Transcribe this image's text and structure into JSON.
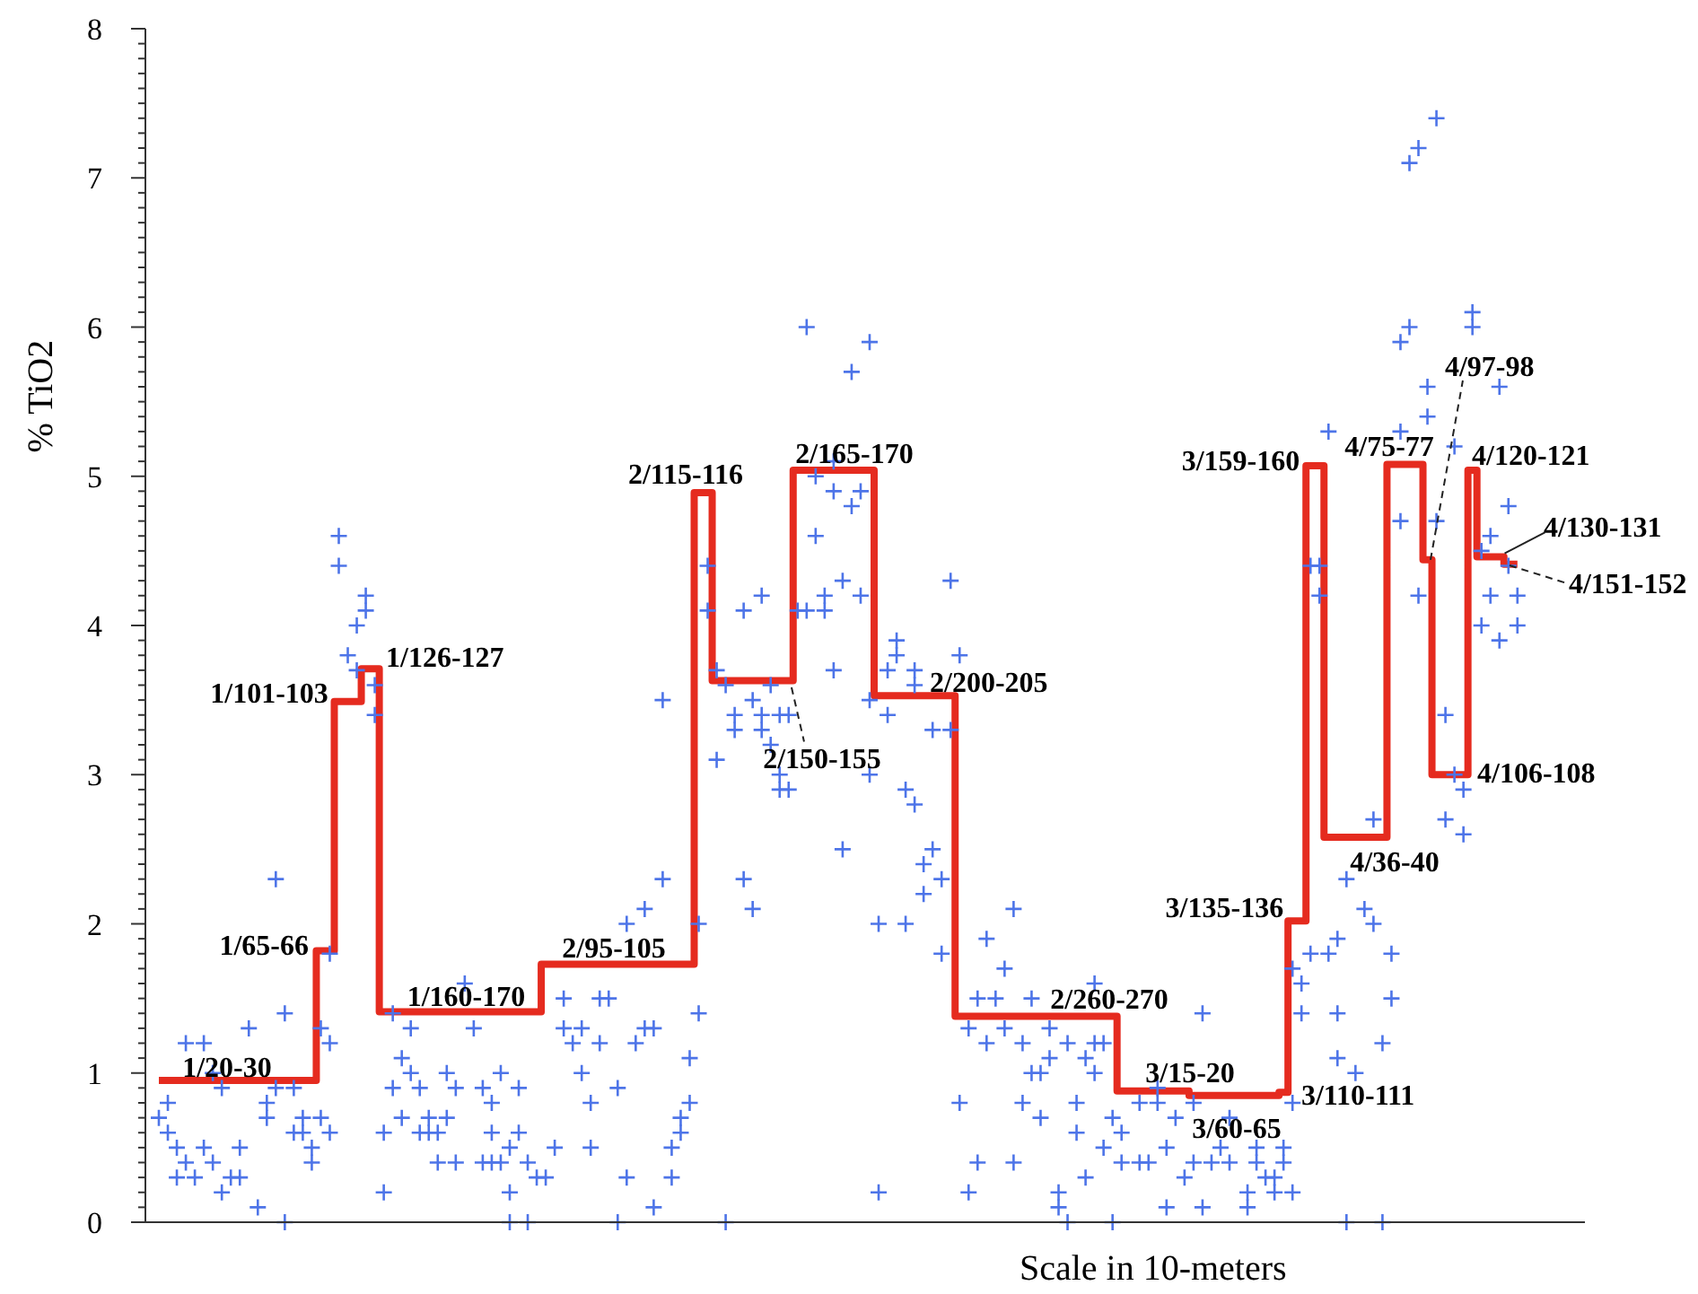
{
  "chart_data": {
    "type": "scatter",
    "xlabel": "Scale in 10-meters",
    "ylabel": "% TiO2",
    "tick_labels": "y",
    "marker": "cross",
    "categories": [
      null,
      null,
      null,
      null,
      null,
      null,
      null,
      null,
      null,
      null,
      null,
      null,
      null,
      null,
      null,
      null,
      null,
      null,
      null,
      null,
      null,
      null,
      null,
      null,
      null,
      null,
      null,
      null,
      null,
      null,
      null,
      null,
      null,
      null,
      null,
      null,
      null,
      null,
      null,
      null,
      null,
      null,
      null,
      null,
      null,
      null,
      null,
      null,
      null,
      null,
      null,
      null,
      null,
      null,
      null,
      null,
      null,
      null,
      null,
      null,
      null,
      null,
      null,
      null,
      null,
      null,
      null,
      null,
      null,
      null,
      null,
      null,
      null,
      null,
      null,
      null,
      null,
      null,
      null,
      null,
      null,
      null,
      null,
      null,
      null,
      null,
      null,
      null,
      null,
      null,
      null,
      null,
      null,
      null,
      null,
      null,
      null,
      null,
      null,
      null,
      null,
      null,
      null,
      null,
      null,
      null,
      null,
      null,
      null,
      null,
      null,
      null,
      null,
      null,
      null,
      null,
      null,
      null,
      null,
      null,
      null,
      null,
      null,
      null,
      null,
      null,
      null,
      null,
      null,
      null,
      null,
      null,
      null,
      null,
      null,
      null,
      null,
      null,
      null,
      null,
      null,
      null,
      null,
      null,
      null,
      null,
      null,
      null,
      null,
      null,
      null,
      null
    ],
    "ylim": [
      0,
      8
    ],
    "yticks": [
      0,
      {
        "value": 0.1,
        "label": null
      },
      {
        "value": 0.2,
        "label": null
      },
      {
        "value": 0.3,
        "label": null
      },
      {
        "value": 0.4,
        "label": null
      },
      {
        "value": 0.5,
        "label": null
      },
      {
        "value": 0.6,
        "label": null
      },
      {
        "value": 0.7,
        "label": null
      },
      {
        "value": 0.8,
        "label": null
      },
      {
        "value": 0.9,
        "label": null
      },
      1,
      {
        "value": 1.1,
        "label": null
      },
      {
        "value": 1.2,
        "label": null
      },
      {
        "value": 1.3,
        "label": null
      },
      {
        "value": 1.4,
        "label": null
      },
      {
        "value": 1.5,
        "label": null
      },
      {
        "value": 1.6,
        "label": null
      },
      {
        "value": 1.7,
        "label": null
      },
      {
        "value": 1.8,
        "label": null
      },
      {
        "value": 1.9,
        "label": null
      },
      2,
      {
        "value": 2.1,
        "label": null
      },
      {
        "value": 2.2,
        "label": null
      },
      {
        "value": 2.3,
        "label": null
      },
      {
        "value": 2.4,
        "label": null
      },
      {
        "value": 2.5,
        "label": null
      },
      {
        "value": 2.6,
        "label": null
      },
      {
        "value": 2.7,
        "label": null
      },
      {
        "value": 2.8,
        "label": null
      },
      {
        "value": 2.9,
        "label": null
      },
      3,
      {
        "value": 3.1,
        "label": null
      },
      {
        "value": 3.2,
        "label": null
      },
      {
        "value": 3.3,
        "label": null
      },
      {
        "value": 3.4,
        "label": null
      },
      {
        "value": 3.5,
        "label": null
      },
      {
        "value": 3.6,
        "label": null
      },
      {
        "value": 3.7,
        "label": null
      },
      {
        "value": 3.8,
        "label": null
      },
      {
        "value": 3.9,
        "label": null
      },
      4,
      {
        "value": 4.1,
        "label": null
      },
      {
        "value": 4.2,
        "label": null
      },
      {
        "value": 4.3,
        "label": null
      },
      {
        "value": 4.4,
        "label": null
      },
      {
        "value": 4.5,
        "label": null
      },
      {
        "value": 4.6,
        "label": null
      },
      {
        "value": 4.7,
        "label": null
      },
      {
        "value": 4.8,
        "label": null
      },
      {
        "value": 4.9,
        "label": null
      },
      5,
      {
        "value": 5.1,
        "label": null
      },
      {
        "value": 5.2,
        "label": null
      },
      {
        "value": 5.3,
        "label": null
      },
      {
        "value": 5.4,
        "label": null
      },
      {
        "value": 5.5,
        "label": null
      },
      {
        "value": 5.6,
        "label": null
      },
      {
        "value": 5.7,
        "label": null
      },
      {
        "value": 5.8,
        "label": null
      },
      {
        "value": 5.9,
        "label": null
      },
      6,
      {
        "value": 6.1,
        "label": null
      },
      {
        "value": 6.2,
        "label": null
      },
      {
        "value": 6.3,
        "label": null
      },
      {
        "value": 6.4,
        "label": null
      },
      {
        "value": 6.5,
        "label": null
      },
      {
        "value": 6.6,
        "label": null
      },
      {
        "value": 6.7,
        "label": null
      },
      {
        "value": 6.8,
        "label": null
      },
      {
        "value": 6.9,
        "label": null
      },
      7,
      {
        "value": 7.1,
        "label": null
      },
      {
        "value": 7.2,
        "label": null
      },
      {
        "value": 7.3,
        "label": null
      },
      {
        "value": 7.4,
        "label": null
      },
      {
        "value": 7.5,
        "label": null
      },
      {
        "value": 7.6,
        "label": null
      },
      {
        "value": 7.7,
        "label": null
      },
      {
        "value": 7.8,
        "label": null
      },
      {
        "value": 7.9,
        "label": null
      },
      8
    ],
    "series": [
      {
        "type": "step",
        "color": "#e52b1f",
        "marker": "none",
        "values": [
          0.95,
          0.95,
          0.95,
          0.95,
          0.95,
          0.95,
          0.95,
          0.95,
          0.95,
          0.95,
          0.95,
          0.95,
          0.95,
          0.95,
          0.95,
          0.95,
          0.95,
          0.95,
          1.82,
          1.82,
          3.49,
          3.49,
          3.49,
          3.71,
          3.71,
          1.41,
          1.41,
          1.41,
          1.41,
          1.41,
          1.41,
          1.41,
          1.41,
          1.41,
          1.41,
          1.41,
          1.41,
          1.41,
          1.41,
          1.41,
          1.41,
          1.41,
          1.41,
          1.73,
          1.73,
          1.73,
          1.73,
          1.73,
          1.73,
          1.73,
          1.73,
          1.73,
          1.73,
          1.73,
          1.73,
          1.73,
          1.73,
          1.73,
          1.73,
          1.73,
          4.89,
          4.89,
          3.63,
          3.63,
          3.63,
          3.63,
          3.63,
          3.63,
          3.63,
          3.63,
          3.63,
          5.04,
          5.04,
          5.04,
          5.04,
          5.04,
          5.04,
          5.04,
          5.04,
          5.04,
          3.53,
          3.53,
          3.53,
          3.53,
          3.53,
          3.53,
          3.53,
          3.53,
          3.53,
          1.38,
          1.38,
          1.38,
          1.38,
          1.38,
          1.38,
          1.38,
          1.38,
          1.38,
          1.38,
          1.38,
          1.38,
          1.38,
          1.38,
          1.38,
          1.38,
          1.38,
          1.38,
          0.88,
          0.88,
          0.88,
          0.88,
          0.88,
          0.88,
          0.88,
          0.88,
          0.85,
          0.85,
          0.85,
          0.85,
          0.85,
          0.85,
          0.85,
          0.85,
          0.85,
          0.85,
          0.87,
          2.02,
          2.02,
          5.07,
          5.07,
          2.58,
          2.58,
          2.58,
          2.58,
          2.58,
          2.58,
          2.58,
          5.08,
          5.08,
          5.08,
          5.08,
          4.44,
          3.0,
          3.0,
          3.0,
          3.0,
          5.04,
          4.46,
          4.46,
          4.46,
          4.41,
          4.41
        ],
        "value_labels": [
          null,
          null,
          null,
          null,
          null,
          null,
          null,
          null,
          "1/20-30",
          null,
          null,
          null,
          null,
          null,
          null,
          null,
          null,
          null,
          "1/65-66",
          null,
          "1/101-103",
          null,
          null,
          null,
          "1/126-127",
          null,
          null,
          null,
          null,
          null,
          null,
          null,
          null,
          null,
          "1/160-170",
          null,
          null,
          null,
          null,
          null,
          null,
          null,
          null,
          null,
          null,
          null,
          null,
          null,
          null,
          null,
          null,
          "2/95-105",
          null,
          null,
          null,
          null,
          null,
          null,
          null,
          null,
          "2/115-116",
          null,
          null,
          null,
          null,
          null,
          null,
          null,
          null,
          null,
          "2/150-155",
          null,
          null,
          null,
          null,
          null,
          null,
          "2/165-170",
          null,
          null,
          null,
          null,
          null,
          null,
          null,
          null,
          null,
          null,
          "2/200-205",
          null,
          null,
          null,
          null,
          null,
          null,
          null,
          null,
          null,
          null,
          null,
          null,
          null,
          null,
          null,
          null,
          null,
          "2/260-270",
          null,
          null,
          null,
          null,
          null,
          null,
          null,
          "3/15-20",
          null,
          null,
          null,
          null,
          null,
          "3/60-65",
          null,
          null,
          null,
          null,
          "3/110-111",
          "3/135-136",
          null,
          "3/159-160",
          null,
          null,
          null,
          null,
          null,
          null,
          null,
          "4/36-40",
          "4/75-77",
          null,
          null,
          null,
          "4/97-98",
          null,
          null,
          null,
          "4/106-108",
          "4/120-121",
          null,
          null,
          "4/130-131",
          "4/151-152",
          null
        ]
      },
      {
        "color": "#4d74e8",
        "values": [
          0.7,
          0.8,
          0.5,
          0.4,
          0.3,
          0.5,
          1.0,
          0.2,
          0.3,
          0.5,
          1.3,
          0.1,
          0.8,
          0.9,
          1.4,
          0.9,
          0.7,
          0.4,
          0.7,
          0.6,
          4.6,
          3.8,
          3.7,
          4.1,
          3.4,
          0.6,
          1.4,
          1.1,
          1.3,
          0.6,
          0.7,
          0.4,
          0.7,
          0.4,
          1.6,
          1.3,
          0.9,
          0.6,
          0.4,
          0.2,
          0.9,
          0.4,
          0.3,
          0.3,
          0.5,
          1.5,
          1.2,
          1.0,
          0.8,
          1.5,
          1.5,
          0,
          0.3,
          1.2,
          1.3,
          1.3,
          3.5,
          0.5,
          0.6,
          1.1,
          1.4,
          4.4,
          3.7,
          3.6,
          3.4,
          4.1,
          3.5,
          3.3,
          3.6,
          3.0,
          3.4,
          4.1,
          4.1,
          4.6,
          4.2,
          4.9,
          2.5,
          5.7,
          4.9,
          3.0,
          0.2,
          3.7,
          3.9,
          2.0,
          2.8,
          2.2,
          2.5,
          2.3,
          3.3,
          3.8,
          1.3,
          0.4,
          1.2,
          1.5,
          1.3,
          0.4,
          1.2,
          1.0,
          0.7,
          1.1,
          0.1,
          0,
          0.8,
          1.1,
          1.2,
          1.2,
          0,
          0.4,
          null,
          0.8,
          0.4,
          0.8,
          0.5,
          0.7,
          0.3,
          0.4,
          1.4,
          0.4,
          0.5,
          0.4,
          null,
          0.1,
          0.5,
          0.3,
          0.2,
          0.5,
          0.2,
          1.6,
          1.8,
          4.2,
          5.3,
          1.4,
          2.3,
          1.0,
          2.1,
          2.0,
          0,
          1.5,
          5.9,
          7.1,
          4.2,
          5.6,
          7.4,
          3.4,
          3.0,
          2.6,
          6.1,
          4.5,
          4.2,
          3.9,
          4.8,
          4.0
        ]
      },
      {
        "color": "#4d74e8",
        "values": [
          null,
          0.6,
          0.3,
          1.2,
          null,
          1.2,
          0.4,
          0.9,
          null,
          0.3,
          null,
          null,
          0.7,
          2.3,
          0,
          0.6,
          0.6,
          0.5,
          1.3,
          1.2,
          4.4,
          null,
          4.0,
          4.2,
          3.6,
          0.2,
          0.9,
          0.7,
          1.0,
          0.9,
          0.6,
          0.6,
          1.0,
          0.9,
          null,
          null,
          0.4,
          0.4,
          1.0,
          0,
          0.6,
          0,
          null,
          null,
          null,
          1.3,
          null,
          1.3,
          0.5,
          1.2,
          null,
          0.9,
          2.0,
          null,
          2.1,
          0.1,
          2.3,
          0.3,
          0.7,
          0.8,
          2.0,
          4.1,
          3.1,
          0,
          3.3,
          2.3,
          2.1,
          4.2,
          3.2,
          2.9,
          2.9,
          null,
          6.0,
          5.0,
          4.1,
          3.7,
          4.3,
          4.8,
          4.2,
          3.5,
          2.0,
          3.4,
          3.8,
          2.9,
          3.7,
          2.4,
          3.3,
          1.8,
          4.3,
          0.8,
          0.2,
          1.5,
          1.9,
          null,
          1.7,
          2.1,
          0.8,
          1.5,
          1.0,
          1.3,
          0.2,
          1.2,
          0.6,
          0.3,
          1.0,
          0.5,
          0.7,
          0.6,
          null,
          0.4,
          null,
          0.9,
          0.1,
          null,
          null,
          0.8,
          0.1,
          null,
          null,
          0.7,
          null,
          0.2,
          0.4,
          null,
          0.3,
          0.4,
          0.8,
          1.4,
          4.4,
          4.4,
          1.8,
          1.9,
          0,
          null,
          null,
          2.7,
          1.2,
          1.8,
          4.7,
          6.0,
          7.2,
          5.4,
          4.7,
          2.7,
          5.2,
          2.9,
          6.0,
          4.0,
          4.6,
          5.6,
          4.4,
          4.2
        ]
      },
      {
        "color": "#4d74e8",
        "values": [
          null,
          null,
          null,
          null,
          null,
          null,
          null,
          null,
          null,
          null,
          null,
          null,
          null,
          null,
          null,
          null,
          null,
          null,
          null,
          1.8,
          null,
          null,
          null,
          null,
          null,
          null,
          null,
          null,
          null,
          null,
          null,
          null,
          null,
          null,
          null,
          null,
          null,
          0.8,
          null,
          0.5,
          null,
          null,
          null,
          null,
          null,
          null,
          null,
          null,
          null,
          null,
          null,
          null,
          null,
          null,
          null,
          null,
          null,
          null,
          null,
          null,
          null,
          null,
          null,
          null,
          null,
          null,
          null,
          3.4,
          null,
          3.4,
          null,
          null,
          null,
          null,
          null,
          5.1,
          null,
          null,
          null,
          5.9,
          null,
          null,
          null,
          null,
          3.6,
          null,
          null,
          null,
          null,
          null,
          null,
          null,
          null,
          null,
          null,
          null,
          null,
          null,
          null,
          null,
          null,
          null,
          null,
          null,
          1.6,
          null,
          null,
          null,
          null,
          null,
          null,
          null,
          null,
          null,
          null,
          null,
          null,
          null,
          null,
          null,
          null,
          null,
          null,
          null,
          null,
          null,
          1.7,
          null,
          null,
          null,
          null,
          1.1,
          null,
          null,
          null,
          null,
          null,
          null,
          5.3,
          null,
          null,
          null,
          null,
          null,
          null,
          null,
          null,
          null,
          null,
          null,
          null,
          null
        ]
      }
    ]
  }
}
